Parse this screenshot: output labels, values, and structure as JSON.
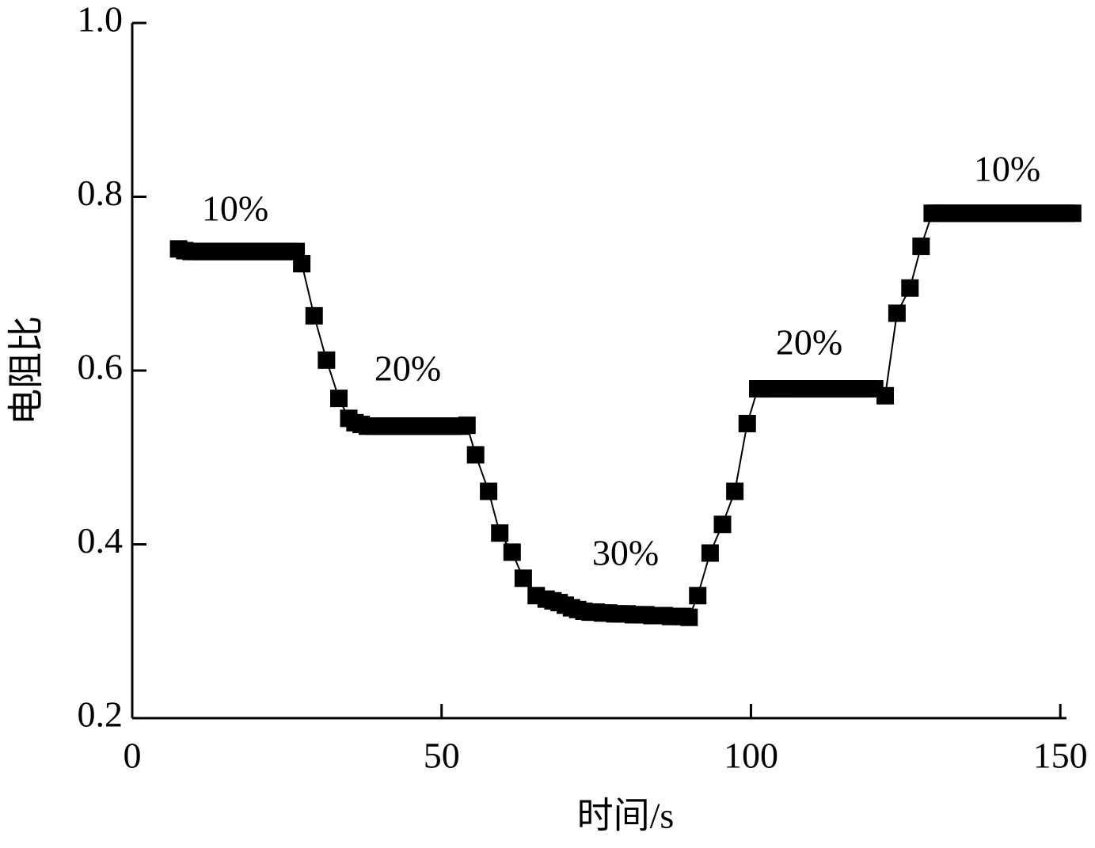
{
  "chart_data": {
    "type": "line",
    "x_label": "时间/s",
    "y_label": "电阻比",
    "xlim": [
      0,
      151
    ],
    "xticks": [
      0,
      50,
      100,
      150
    ],
    "ylim": [
      0.2,
      1.0
    ],
    "yticks": [
      0.2,
      0.4,
      0.6,
      0.8,
      {
        "value": 1,
        "label": "1.0"
      }
    ],
    "grid": false,
    "annotations": [
      "10%",
      "20%",
      "30%",
      "20%",
      "10%"
    ],
    "series": [
      {
        "color": "#000000",
        "x": [
          7.5,
          8.5,
          9.5,
          10.5,
          11.5,
          12.5,
          13.5,
          14.5,
          15.5,
          16.5,
          17.5,
          18.5,
          19.5,
          20.5,
          21.5,
          22.5,
          23.5,
          24.5,
          25.5,
          26.5,
          27.4,
          29.4,
          31.4,
          33.4,
          35,
          36,
          37,
          38,
          39,
          40,
          41,
          42,
          43,
          44,
          45,
          46,
          47,
          48,
          49,
          50,
          51,
          52,
          53,
          54.1,
          55.5,
          57.6,
          59.4,
          61.4,
          63.2,
          65.3,
          66.9,
          68,
          69,
          70,
          71,
          72,
          73,
          74,
          75,
          76,
          77,
          78,
          79,
          80,
          81,
          82,
          83,
          84,
          85,
          86,
          87,
          88,
          89,
          90,
          91.4,
          93.4,
          95.4,
          97.4,
          99.4,
          101.1,
          102,
          103,
          104,
          105,
          106,
          107,
          108,
          109,
          110,
          111,
          112,
          113,
          114,
          115,
          116,
          117,
          118,
          119,
          120,
          121.7,
          123.6,
          125.7,
          127.5,
          129.3,
          130,
          131,
          132,
          133,
          134,
          135,
          136,
          137,
          138,
          139,
          140,
          141,
          142,
          143,
          144,
          145,
          146,
          147,
          148,
          149,
          150,
          151,
          152
        ],
        "values": [
          0.74,
          0.738,
          0.737,
          0.737,
          0.737,
          0.737,
          0.737,
          0.737,
          0.737,
          0.737,
          0.737,
          0.737,
          0.737,
          0.737,
          0.737,
          0.737,
          0.737,
          0.737,
          0.737,
          0.737,
          0.723,
          0.663,
          0.612,
          0.568,
          0.545,
          0.54,
          0.538,
          0.536,
          0.536,
          0.536,
          0.536,
          0.536,
          0.536,
          0.536,
          0.536,
          0.536,
          0.536,
          0.536,
          0.536,
          0.536,
          0.536,
          0.536,
          0.536,
          0.537,
          0.503,
          0.461,
          0.413,
          0.391,
          0.361,
          0.341,
          0.337,
          0.335,
          0.333,
          0.33,
          0.327,
          0.325,
          0.323,
          0.322,
          0.322,
          0.321,
          0.321,
          0.32,
          0.32,
          0.32,
          0.319,
          0.319,
          0.319,
          0.318,
          0.318,
          0.318,
          0.317,
          0.317,
          0.317,
          0.316,
          0.341,
          0.39,
          0.423,
          0.461,
          0.539,
          0.579,
          0.579,
          0.579,
          0.579,
          0.579,
          0.579,
          0.579,
          0.579,
          0.579,
          0.579,
          0.579,
          0.579,
          0.579,
          0.579,
          0.579,
          0.579,
          0.579,
          0.579,
          0.579,
          0.579,
          0.571,
          0.666,
          0.695,
          0.743,
          0.781,
          0.781,
          0.781,
          0.781,
          0.781,
          0.781,
          0.781,
          0.781,
          0.781,
          0.781,
          0.781,
          0.781,
          0.781,
          0.781,
          0.781,
          0.781,
          0.781,
          0.781,
          0.781,
          0.781,
          0.781,
          0.781,
          0.781,
          0.781
        ]
      }
    ]
  }
}
